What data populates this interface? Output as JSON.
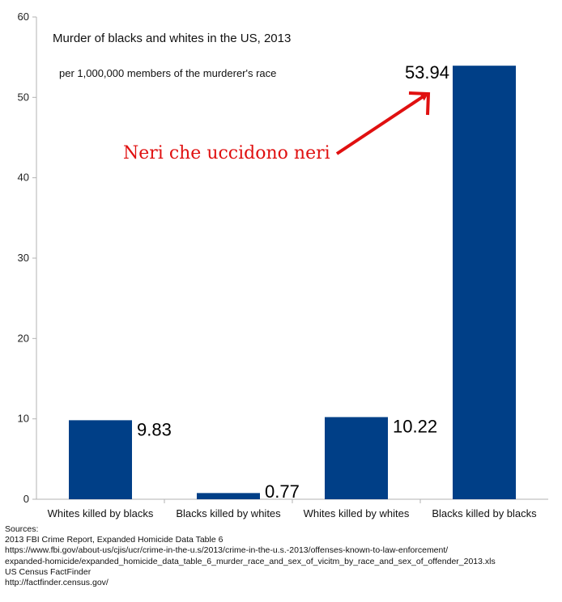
{
  "chart_data": {
    "type": "bar",
    "title": "Murder of blacks and whites in the US, 2013",
    "subtitle": "per 1,000,000 members of the murderer's race",
    "categories": [
      "Whites killed by blacks",
      "Blacks killed by whites",
      "Whites killed by whites",
      "Blacks killed by blacks"
    ],
    "values": [
      9.83,
      0.77,
      10.22,
      53.94
    ],
    "data_labels": [
      "9.83",
      "0.77",
      "10.22",
      "53.94"
    ],
    "ylim": [
      0,
      60
    ],
    "yticks": [
      0,
      10,
      20,
      30,
      40,
      50,
      60
    ],
    "grid": false,
    "bar_color": "#003f87",
    "annotation": {
      "text": "Neri che uccidono neri",
      "color": "#e01010",
      "points_to": "Blacks killed by blacks"
    }
  },
  "sources": {
    "lines": [
      "Sources:",
      "2013 FBI Crime Report, Expanded Homicide Data Table 6",
      "https://www.fbi.gov/about-us/cjis/ucr/crime-in-the-u.s/2013/crime-in-the-u.s.-2013/offenses-known-to-law-enforcement/",
      "expanded-homicide/expanded_homicide_data_table_6_murder_race_and_sex_of_vicitm_by_race_and_sex_of_offender_2013.xls",
      "US Census FactFinder",
      "http://factfinder.census.gov/"
    ]
  }
}
